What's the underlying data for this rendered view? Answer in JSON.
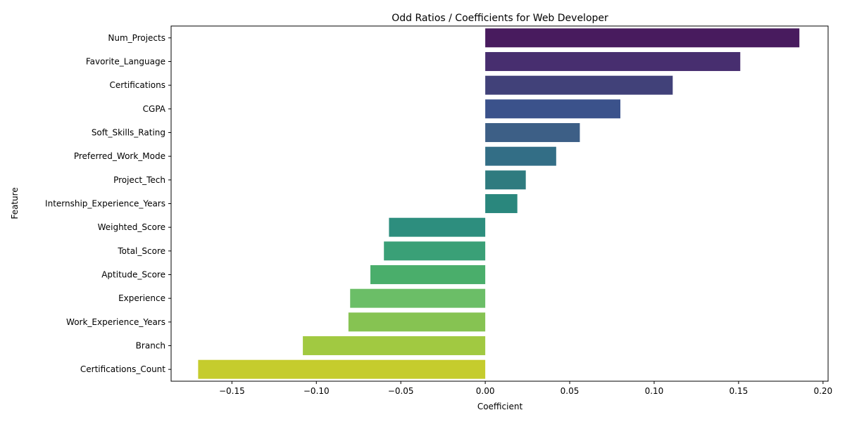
{
  "chart_data": {
    "type": "bar",
    "orientation": "horizontal",
    "title": "Odd Ratios / Coefficients for Web Developer",
    "xlabel": "Coefficient",
    "ylabel": "Feature",
    "xlim": [
      -0.186,
      0.203
    ],
    "x_ticks": [
      -0.15,
      -0.1,
      -0.05,
      0.0,
      0.05,
      0.1,
      0.15,
      0.2
    ],
    "x_tick_labels": [
      "−0.15",
      "−0.10",
      "−0.05",
      "0.00",
      "0.05",
      "0.10",
      "0.15",
      "0.20"
    ],
    "grid": false,
    "legend": "none",
    "categories": [
      "Num_Projects",
      "Favorite_Language",
      "Certifications",
      "CGPA",
      "Soft_Skills_Rating",
      "Preferred_Work_Mode",
      "Project_Tech",
      "Internship_Experience_Years",
      "Weighted_Score",
      "Total_Score",
      "Aptitude_Score",
      "Experience",
      "Work_Experience_Years",
      "Branch",
      "Certifications_Count"
    ],
    "values": [
      0.186,
      0.151,
      0.111,
      0.08,
      0.056,
      0.042,
      0.024,
      0.019,
      -0.057,
      -0.06,
      -0.068,
      -0.08,
      -0.081,
      -0.108,
      -0.17
    ],
    "colors": [
      "#481b5e",
      "#472e6f",
      "#414179",
      "#3b528b",
      "#3d5f86",
      "#336e86",
      "#2f7b7f",
      "#2a877d",
      "#2d8e7e",
      "#3aa077",
      "#4aae6b",
      "#6bbe67",
      "#86c352",
      "#a1c941",
      "#c5cc2d"
    ]
  }
}
